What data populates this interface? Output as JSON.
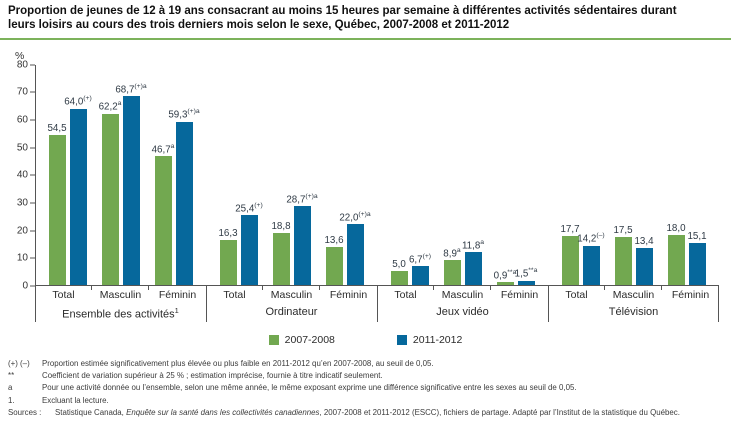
{
  "title": {
    "line1": "Proportion de jeunes de 12 à 19 ans consacrant au moins 15 heures par semaine à différentes activités sédentaires durant",
    "line2": "leurs loisirs au cours des trois derniers mois selon le sexe, Québec, 2007-2008 et 2011-2012"
  },
  "colors": {
    "series_2007": "#72a850",
    "series_2011": "#06689c",
    "title_rule": "#7cb25b",
    "axis": "#555555"
  },
  "chart_data": {
    "type": "bar",
    "title": "Proportion de jeunes de 12 à 19 ans consacrant au moins 15 heures par semaine à différentes activités sédentaires durant leurs loisirs au cours des trois derniers mois selon le sexe, Québec, 2007-2008 et 2011-2012",
    "xlabel": "",
    "ylabel": "%",
    "ylim": [
      0,
      80
    ],
    "ytick_step": 10,
    "grid": false,
    "legend_position": "bottom",
    "legend": [
      {
        "label": "2007-2008",
        "color": "#72a850"
      },
      {
        "label": "2011-2012",
        "color": "#06689c"
      }
    ],
    "groups": [
      {
        "label": "Ensemble des activités",
        "label_superscript": "1",
        "categories": [
          "Total",
          "Masculin",
          "Féminin"
        ],
        "series": [
          {
            "name": "2007-2008",
            "points": [
              {
                "value": 54.5,
                "label": "54,5",
                "sup": ""
              },
              {
                "value": 62.2,
                "label": "62,2",
                "sup": "a"
              },
              {
                "value": 46.7,
                "label": "46,7",
                "sup": "a"
              }
            ]
          },
          {
            "name": "2011-2012",
            "points": [
              {
                "value": 64.0,
                "label": "64,0",
                "sup": "(+)"
              },
              {
                "value": 68.7,
                "label": "68,7",
                "sup": "(+)a"
              },
              {
                "value": 59.3,
                "label": "59,3",
                "sup": "(+)a"
              }
            ]
          }
        ]
      },
      {
        "label": "Ordinateur",
        "label_superscript": "",
        "categories": [
          "Total",
          "Masculin",
          "Féminin"
        ],
        "series": [
          {
            "name": "2007-2008",
            "points": [
              {
                "value": 16.3,
                "label": "16,3",
                "sup": ""
              },
              {
                "value": 18.8,
                "label": "18,8",
                "sup": ""
              },
              {
                "value": 13.6,
                "label": "13,6",
                "sup": ""
              }
            ]
          },
          {
            "name": "2011-2012",
            "points": [
              {
                "value": 25.4,
                "label": "25,4",
                "sup": "(+)"
              },
              {
                "value": 28.7,
                "label": "28,7",
                "sup": "(+)a"
              },
              {
                "value": 22.0,
                "label": "22,0",
                "sup": "(+)a"
              }
            ]
          }
        ]
      },
      {
        "label": "Jeux vidéo",
        "label_superscript": "",
        "categories": [
          "Total",
          "Masculin",
          "Féminin"
        ],
        "series": [
          {
            "name": "2007-2008",
            "points": [
              {
                "value": 5.0,
                "label": "5,0",
                "sup": ""
              },
              {
                "value": 8.9,
                "label": "8,9",
                "sup": "a"
              },
              {
                "value": 0.9,
                "label": "0,9",
                "sup": "**a"
              }
            ]
          },
          {
            "name": "2011-2012",
            "points": [
              {
                "value": 6.7,
                "label": "6,7",
                "sup": "(+)"
              },
              {
                "value": 11.8,
                "label": "11,8",
                "sup": "a"
              },
              {
                "value": 1.5,
                "label": "1,5",
                "sup": "**a"
              }
            ]
          }
        ]
      },
      {
        "label": "Télévision",
        "label_superscript": "",
        "categories": [
          "Total",
          "Masculin",
          "Féminin"
        ],
        "series": [
          {
            "name": "2007-2008",
            "points": [
              {
                "value": 17.7,
                "label": "17,7",
                "sup": ""
              },
              {
                "value": 17.5,
                "label": "17,5",
                "sup": ""
              },
              {
                "value": 18.0,
                "label": "18,0",
                "sup": ""
              }
            ]
          },
          {
            "name": "2011-2012",
            "points": [
              {
                "value": 14.2,
                "label": "14,2",
                "sup": "(–)"
              },
              {
                "value": 13.4,
                "label": "13,4",
                "sup": ""
              },
              {
                "value": 15.1,
                "label": "15,1",
                "sup": ""
              }
            ]
          }
        ]
      }
    ]
  },
  "footnotes": [
    {
      "marker": "(+) (–)",
      "text": "Proportion estimée significativement plus élevée ou plus faible en 2011-2012 qu’en 2007-2008, au seuil de 0,05."
    },
    {
      "marker": "**",
      "text": "Coefficient de variation supérieur à 25 % ; estimation imprécise, fournie à titre indicatif seulement."
    },
    {
      "marker": "a",
      "text": "Pour une activité donnée ou l’ensemble, selon une même année, le même exposant exprime une différence significative entre les sexes au seuil de 0,05."
    },
    {
      "marker": "1.",
      "text": "Excluant la lecture."
    }
  ],
  "sources": {
    "marker": "Sources :",
    "prefix": "Statistique Canada, ",
    "italic": "Enquête sur la santé dans les collectivités canadiennes",
    "suffix": ", 2007-2008 et 2011-2012 (ESCC), fichiers de partage. Adapté par l’Institut de la statistique du Québec."
  }
}
